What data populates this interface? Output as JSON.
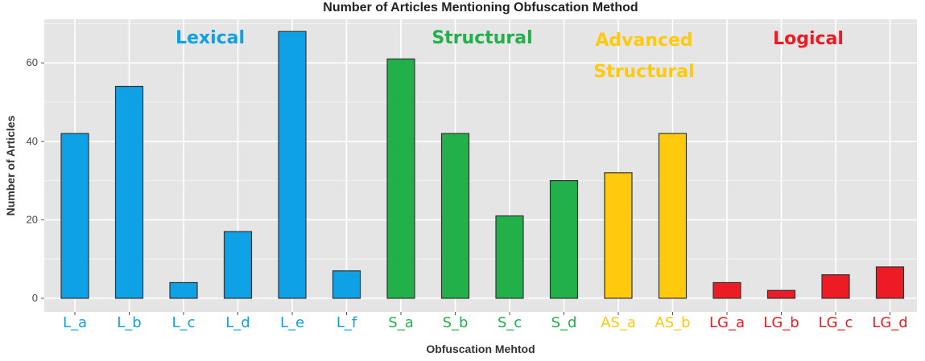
{
  "chart_data": {
    "type": "bar",
    "title": "Number of Articles Mentioning Obfuscation Method",
    "xlabel": "Obfuscation Mehtod",
    "ylabel": "Number of Articles",
    "ylim": [
      0,
      70
    ],
    "y_ticks": [
      0,
      20,
      40,
      60
    ],
    "grid": true,
    "categories": [
      "L_a",
      "L_b",
      "L_c",
      "L_d",
      "L_e",
      "L_f",
      "S_a",
      "S_b",
      "S_c",
      "S_d",
      "AS_a",
      "AS_b",
      "LG_a",
      "LG_b",
      "LG_c",
      "LG_d"
    ],
    "values": [
      42,
      54,
      4,
      17,
      68,
      7,
      61,
      42,
      21,
      30,
      32,
      42,
      4,
      2,
      6,
      8
    ],
    "category_groups": [
      "lexical",
      "lexical",
      "lexical",
      "lexical",
      "lexical",
      "lexical",
      "structural",
      "structural",
      "structural",
      "structural",
      "advanced_structural",
      "advanced_structural",
      "logical",
      "logical",
      "logical",
      "logical"
    ],
    "groups": {
      "lexical": {
        "label_lines": [
          "Lexical"
        ],
        "color": "#0ea1e5"
      },
      "structural": {
        "label_lines": [
          "Structural"
        ],
        "color": "#22b04b"
      },
      "advanced_structural": {
        "label_lines": [
          "Advanced",
          "Structural"
        ],
        "color": "#ffc90e"
      },
      "logical": {
        "label_lines": [
          "Logical"
        ],
        "color": "#ed1c24"
      }
    },
    "panel_background": "#e5e5e5",
    "grid_color": "#ffffff",
    "bar_outline": "#333333"
  }
}
